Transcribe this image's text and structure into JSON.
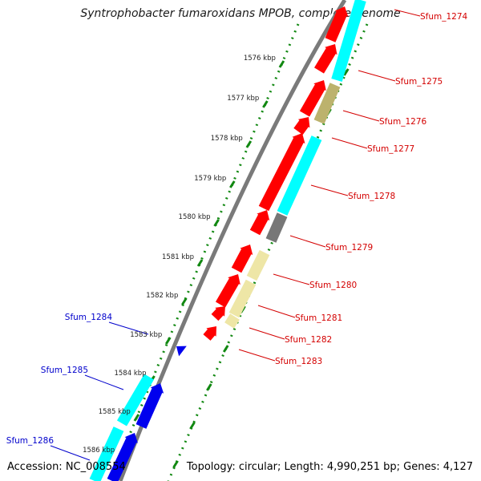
{
  "title": "Syntrophobacter fumaroxidans MPOB, complete genome",
  "accession_text": "Accession: NC_008554",
  "summary_text": "Topology: circular; Length: 4,990,251 bp; Genes: 4,127",
  "colors": {
    "backbone": "#7a7a7a",
    "tick_dots": "#118811",
    "forward_label": "#d40000",
    "reverse_label": "#0000cc",
    "cds_forward": "#ff0000",
    "cds_cyan": "#00ffff",
    "cds_olive": "#bcb26d",
    "cds_pale": "#eee6a6",
    "cds_gray": "#777777",
    "cds_reverse": "#0000ee"
  },
  "scale_labels": [
    "1576 kbp",
    "1577 kbp",
    "1578 kbp",
    "1579 kbp",
    "1580 kbp",
    "1581 kbp",
    "1582 kbp",
    "1583 kbp",
    "1584 kbp",
    "1585 kbp",
    "1586 kbp"
  ],
  "forward_gene_labels": [
    "Sfum_1274",
    "Sfum_1275",
    "Sfum_1276",
    "Sfum_1277",
    "Sfum_1278",
    "Sfum_1279",
    "Sfum_1280",
    "Sfum_1281",
    "Sfum_1282",
    "Sfum_1283"
  ],
  "reverse_gene_labels": [
    "Sfum_1284",
    "Sfum_1285",
    "Sfum_1286"
  ]
}
